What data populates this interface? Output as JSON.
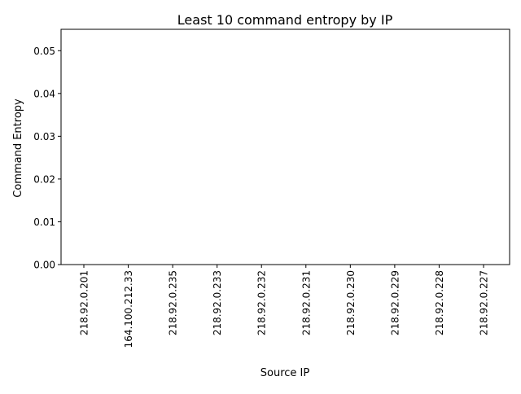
{
  "chart_data": {
    "type": "bar",
    "title": "Least 10 command entropy by IP",
    "xlabel": "Source IP",
    "ylabel": "Command Entropy",
    "categories": [
      "218.92.0.201",
      "164.100.212.33",
      "218.92.0.235",
      "218.92.0.233",
      "218.92.0.232",
      "218.92.0.231",
      "218.92.0.230",
      "218.92.0.229",
      "218.92.0.228",
      "218.92.0.227"
    ],
    "values": [
      0,
      0,
      0,
      0,
      0,
      0,
      0,
      0,
      0,
      0
    ],
    "ylim": [
      0,
      0.055
    ],
    "yticks": [
      "0.00",
      "0.01",
      "0.02",
      "0.03",
      "0.04",
      "0.05"
    ],
    "grid": false,
    "legend": "none",
    "bar_color": "#1f77b4"
  }
}
